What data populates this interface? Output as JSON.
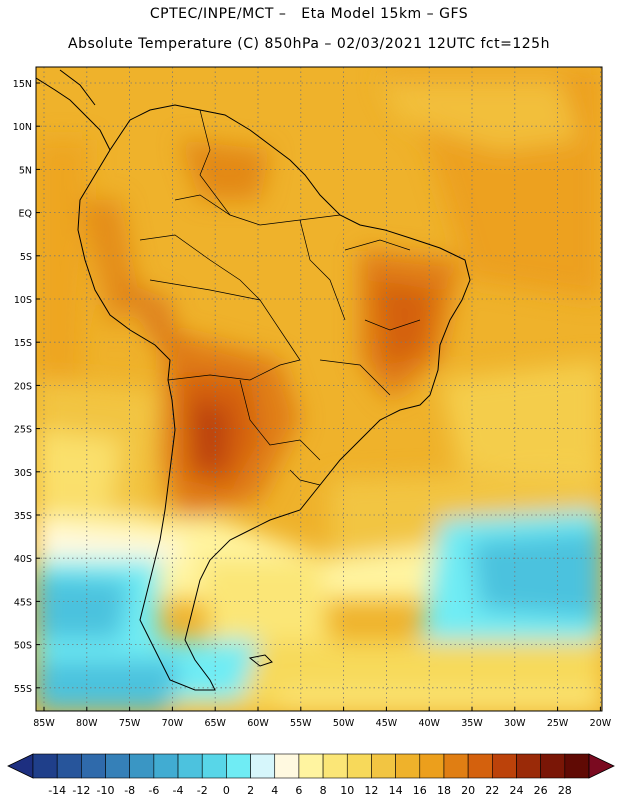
{
  "title": {
    "line1": "CPTEC/INPE/MCT –   Eta Model 15km – GFS",
    "line2": "Absolute Temperature (C) 850hPa – 02/03/2021 12UTC fct=125h"
  },
  "map": {
    "lat_labels": [
      "15N",
      "10N",
      "5N",
      "EQ",
      "5S",
      "10S",
      "15S",
      "20S",
      "25S",
      "30S",
      "35S",
      "40S",
      "45S",
      "50S",
      "55S"
    ],
    "lon_labels": [
      "85W",
      "80W",
      "75W",
      "70W",
      "65W",
      "60W",
      "55W",
      "50W",
      "45W",
      "40W",
      "35W",
      "30W",
      "25W",
      "20W"
    ]
  },
  "colorbar": {
    "ticks": [
      "-14",
      "-12",
      "-10",
      "-8",
      "-6",
      "-4",
      "-2",
      "0",
      "2",
      "4",
      "6",
      "8",
      "10",
      "12",
      "14",
      "16",
      "18",
      "20",
      "22",
      "24",
      "26",
      "28"
    ],
    "colors": [
      "#1f3f8a",
      "#27559b",
      "#2f6aab",
      "#3580b8",
      "#3a96c4",
      "#41acd2",
      "#4cc2de",
      "#58d6e8",
      "#6fecf4",
      "#d6f6fb",
      "#fff9e0",
      "#fff4a0",
      "#fbe677",
      "#f7d95a",
      "#f2c542",
      "#efb22b",
      "#ec9f1c",
      "#e07e13",
      "#d4610d",
      "#bc420a",
      "#9a2a08",
      "#7a1606",
      "#600a04"
    ],
    "under_color": "#1d2f80",
    "over_color": "#7a0a20"
  }
}
